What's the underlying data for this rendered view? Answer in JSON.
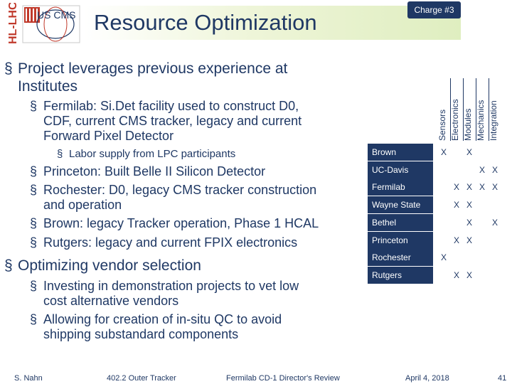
{
  "header": {
    "logo_vertical_text": "HL-LHC",
    "logo_text": "US CMS",
    "title": "Resource Optimization",
    "charge_badge": "Charge #3"
  },
  "body": {
    "b1": "Project leverages previous experience at",
    "b1_cont": "Institutes",
    "b1_1_a": "Fermilab: Si.Det facility used to construct D0,",
    "b1_1_b": "CDF, current CMS tracker, legacy and current",
    "b1_1_c": "Forward Pixel Detector",
    "b1_1_1": "Labor supply from LPC participants",
    "b1_2": "Princeton: Built Belle II Silicon Detector",
    "b1_3_a": "Rochester: D0, legacy CMS tracker construction",
    "b1_3_b": "and operation",
    "b1_4": "Brown: legacy Tracker operation, Phase 1 HCAL",
    "b1_5": "Rutgers:  legacy and current FPIX electronics",
    "b2": "Optimizing vendor selection",
    "b2_1_a": "Investing in demonstration projects to vet low",
    "b2_1_b": "cost alternative vendors",
    "b2_2_a": "Allowing for creation of in-situ QC to avoid",
    "b2_2_b": "shipping substandard components",
    "bullet": "§"
  },
  "matrix": {
    "columns": [
      "Sensors",
      "Electronics",
      "Modules",
      "Mechanics",
      "Integration"
    ],
    "mark": "X",
    "rows": [
      {
        "name": "Brown",
        "marks": [
          1,
          0,
          1,
          0,
          0
        ]
      },
      {
        "name": "UC-Davis",
        "marks": [
          0,
          0,
          0,
          1,
          1
        ]
      },
      {
        "name": "Fermilab",
        "marks": [
          0,
          1,
          1,
          1,
          1
        ]
      },
      {
        "name": "Wayne State",
        "marks": [
          0,
          1,
          1,
          0,
          0
        ]
      },
      {
        "name": "Bethel",
        "marks": [
          0,
          0,
          1,
          0,
          1
        ]
      },
      {
        "name": "Princeton",
        "marks": [
          0,
          1,
          1,
          0,
          0
        ]
      },
      {
        "name": "Rochester",
        "marks": [
          1,
          0,
          0,
          0,
          0
        ]
      },
      {
        "name": "Rutgers",
        "marks": [
          0,
          1,
          1,
          0,
          0
        ]
      }
    ]
  },
  "footer": {
    "author": "S. Nahn",
    "wbs": "402.2 Outer Tracker",
    "review": "Fermilab CD-1 Director's Review",
    "date": "April 4, 2018",
    "page": "41"
  },
  "colors": {
    "navy": "#1f3864",
    "band": "#dfeec0",
    "logo_red": "#c0392b"
  }
}
